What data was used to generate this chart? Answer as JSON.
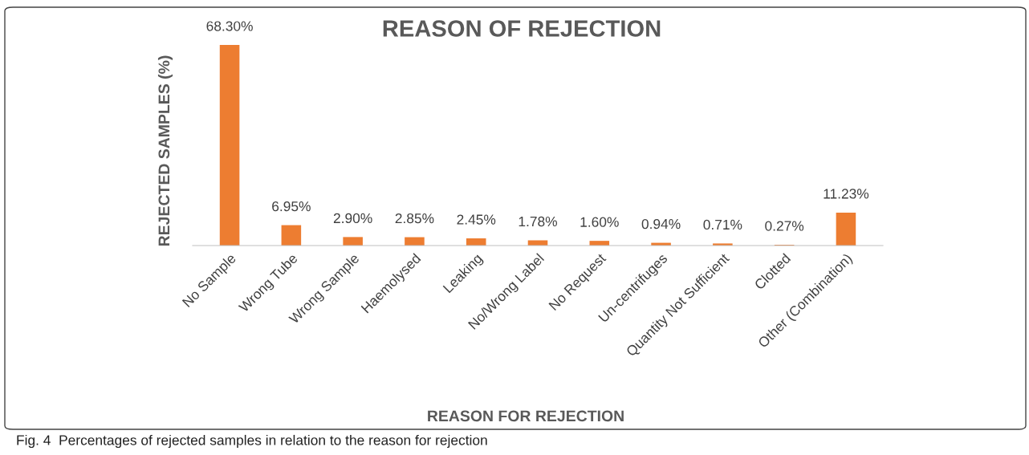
{
  "chart_data": {
    "type": "bar",
    "title": "REASON OF REJECTION",
    "xlabel": "REASON FOR REJECTION",
    "ylabel": "REJECTED SAMPLES (%)",
    "categories": [
      "No Sample",
      "Wrong Tube",
      "Wrong Sample",
      "Haemolysed",
      "Leaking",
      "No/Wrong Label",
      "No Request",
      "Un-centrifuges",
      "Quantity Not Sufficient",
      "Clotted",
      "Other (Combination)"
    ],
    "values": [
      68.3,
      6.95,
      2.9,
      2.85,
      2.45,
      1.78,
      1.6,
      0.94,
      0.71,
      0.27,
      11.23
    ],
    "value_labels": [
      "68.30%",
      "6.95%",
      "2.90%",
      "2.85%",
      "2.45%",
      "1.78%",
      "1.60%",
      "0.94%",
      "0.71%",
      "0.27%",
      "11.23%"
    ],
    "color": "#ed7d31",
    "grid": false,
    "legend": false,
    "annotations": [
      "Fig. 4  Percentages of rejected samples in relation to the reason for rejection"
    ]
  }
}
